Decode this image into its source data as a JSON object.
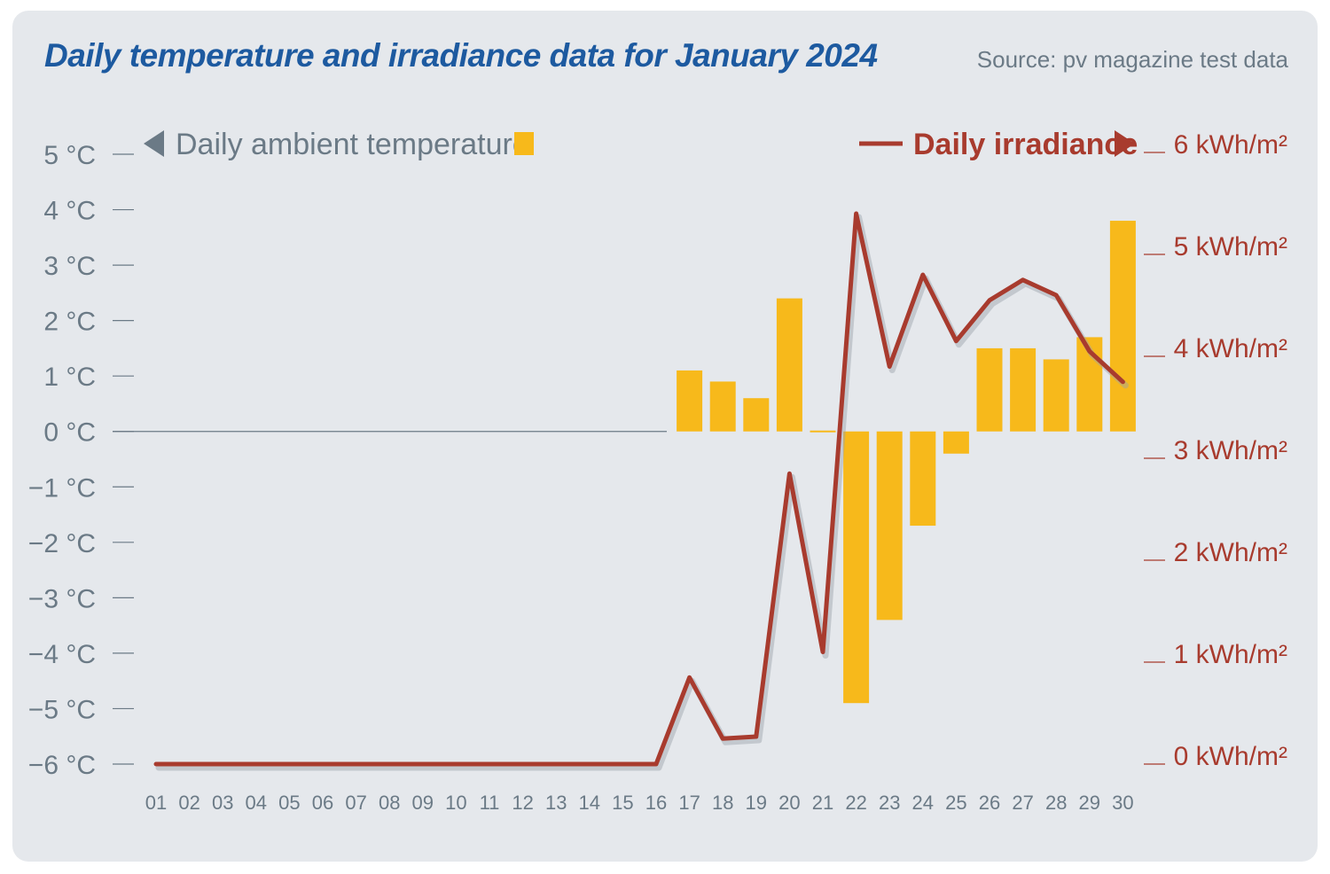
{
  "header": {
    "title": "Daily temperature and irradiance data for January 2024",
    "source": "Source: pv magazine test data"
  },
  "colors": {
    "background": "#e5e8ec",
    "title": "#1d5aa0",
    "bar": "#f7b91b",
    "line": "#a83b2e",
    "axis_text": "#6b7a86"
  },
  "chart_data": {
    "type": "bar+line",
    "title": "Daily temperature and irradiance data for January 2024",
    "categories": [
      "01",
      "02",
      "03",
      "04",
      "05",
      "06",
      "07",
      "08",
      "09",
      "10",
      "11",
      "12",
      "13",
      "14",
      "15",
      "16",
      "17",
      "18",
      "19",
      "20",
      "21",
      "22",
      "23",
      "24",
      "25",
      "26",
      "27",
      "28",
      "29",
      "30"
    ],
    "series": [
      {
        "name": "Daily ambient temperature",
        "type": "bar",
        "axis": "left",
        "unit": "°C",
        "values": [
          null,
          null,
          null,
          null,
          null,
          null,
          null,
          null,
          null,
          null,
          null,
          null,
          null,
          null,
          null,
          null,
          1.1,
          0.9,
          0.6,
          2.4,
          0,
          -4.9,
          -3.4,
          -1.7,
          -0.4,
          1.5,
          1.5,
          1.3,
          1.7,
          3.8
        ]
      },
      {
        "name": "Daily irradiance",
        "type": "line",
        "axis": "right",
        "unit": "kWh/m2",
        "values": [
          0,
          0,
          0,
          0,
          0,
          0,
          0,
          0,
          0,
          0,
          0,
          0,
          0,
          0,
          0,
          0,
          0.85,
          0.25,
          0.27,
          2.85,
          1.1,
          5.4,
          3.9,
          4.8,
          4.15,
          4.55,
          4.75,
          4.6,
          4.05,
          3.75
        ]
      }
    ],
    "y_left": {
      "ylim": [
        -6,
        5
      ],
      "ticks": [
        5,
        4,
        3,
        2,
        1,
        0,
        -1,
        -2,
        -3,
        -4,
        -5,
        -6
      ],
      "labels": [
        "5 °C",
        "4 °C",
        "3 °C",
        "2 °C",
        "1 °C",
        "0 °C",
        "−1 °C",
        "−2 °C",
        "−3 °C",
        "−4 °C",
        "−5 °C",
        "−6 °C"
      ]
    },
    "y_right": {
      "ylim": [
        0,
        6
      ],
      "ticks": [
        6,
        5,
        4,
        3,
        2,
        1,
        0
      ],
      "labels": [
        "6 kWh/m²",
        "5 kWh/m²",
        "4 kWh/m²",
        "3 kWh/m²",
        "2 kWh/m²",
        "1 kWh/m²",
        "0 kWh/m²"
      ]
    },
    "legend": {
      "temperature": "Daily ambient temperature",
      "irradiance": "Daily irradiance"
    }
  }
}
